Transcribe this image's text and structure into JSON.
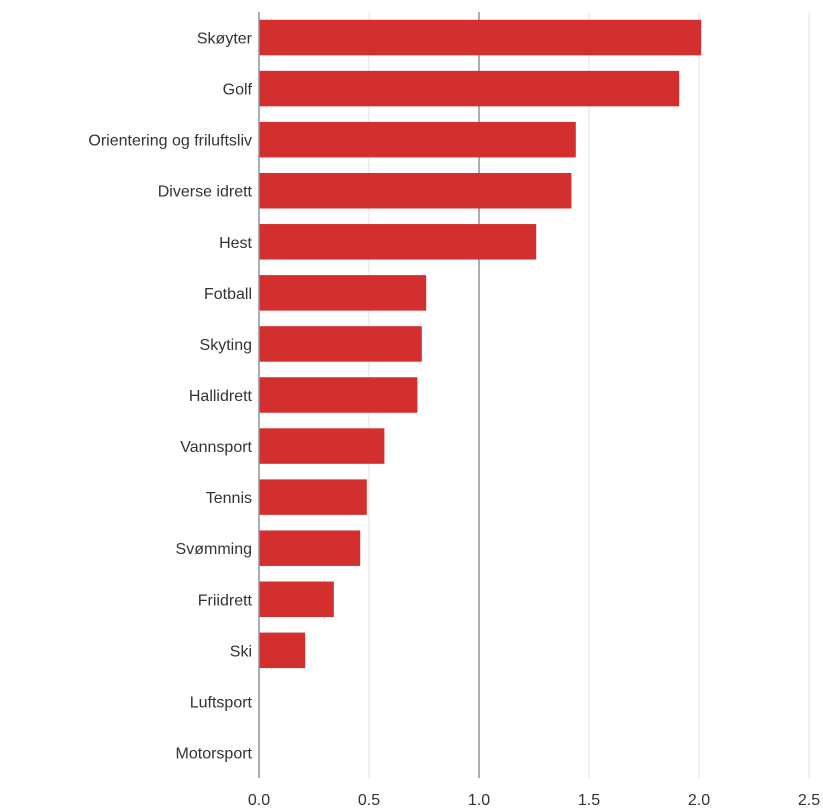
{
  "chart_data": {
    "type": "bar",
    "orientation": "horizontal",
    "categories": [
      "Skøyter",
      "Golf",
      "Orientering og friluftsliv",
      "Diverse idrett",
      "Hest",
      "Fotball",
      "Skyting",
      "Hallidrett",
      "Vannsport",
      "Tennis",
      "Svømming",
      "Friidrett",
      "Ski",
      "Luftsport",
      "Motorsport"
    ],
    "values": [
      2.01,
      1.91,
      1.44,
      1.42,
      1.26,
      0.76,
      0.74,
      0.72,
      0.57,
      0.49,
      0.46,
      0.34,
      0.21,
      0,
      0
    ],
    "xlim": [
      0,
      2.5
    ],
    "xticks": [
      "0.0",
      "0.5",
      "1.0",
      "1.5",
      "2.0",
      "2.5"
    ],
    "title": "",
    "xlabel": "",
    "ylabel": "",
    "grid": true,
    "bar_color": "#d32f2f",
    "grid_color": "#e2e2e2",
    "reference_line_value": 1.0,
    "reference_line_color": "#8a96a0"
  }
}
